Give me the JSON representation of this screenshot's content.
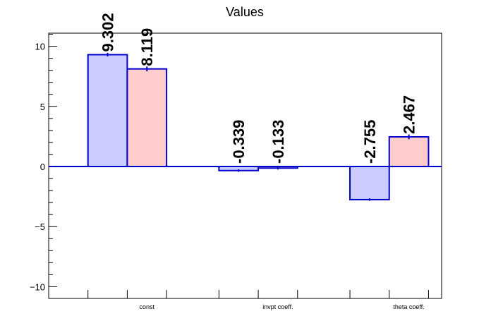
{
  "chart_data": {
    "type": "bar",
    "title": "Values",
    "categories": [
      "const",
      "invpt coeff.",
      "theta coeff."
    ],
    "series": [
      {
        "values": [
          9.302,
          -0.339,
          -2.755
        ],
        "errors": [
          0.15,
          0.1,
          0.1
        ],
        "color": "#ccccff"
      },
      {
        "values": [
          8.119,
          -0.133,
          2.467
        ],
        "errors": [
          0.2,
          0.12,
          0.2
        ],
        "color": "#ffcccc"
      }
    ],
    "value_labels": [
      [
        "9.302",
        "-0.339",
        "-2.755"
      ],
      [
        "8.119",
        "-0.133",
        "2.467"
      ]
    ],
    "ylim": [
      -11,
      11
    ],
    "yticks": [
      -10,
      -5,
      0,
      5,
      10
    ],
    "ytick_labels": [
      "−10",
      "−5",
      "0",
      "5",
      "10"
    ],
    "outline_color": "#0000cc",
    "grid": false
  }
}
